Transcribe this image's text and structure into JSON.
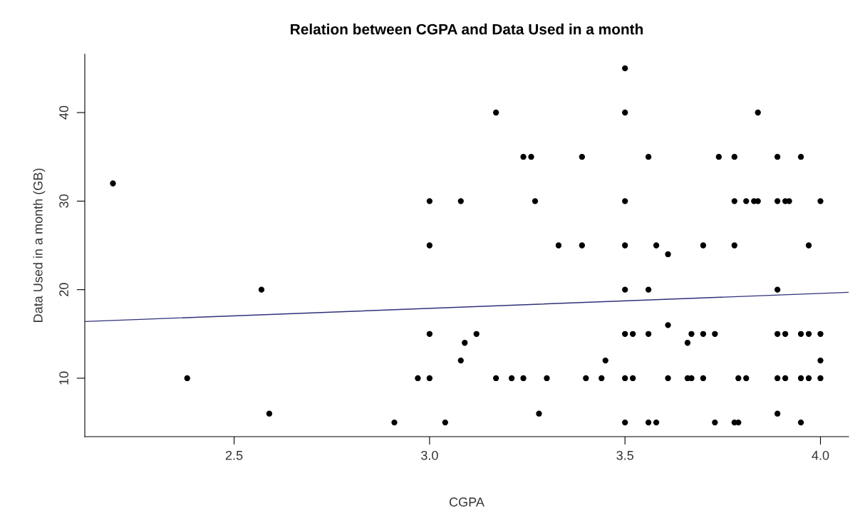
{
  "chart_data": {
    "type": "scatter",
    "title": "Relation between CGPA and Data Used in a month",
    "xlabel": "CGPA",
    "ylabel": "Data Used in a month (GB)",
    "xlim": [
      2.118,
      4.072
    ],
    "ylim": [
      3.4,
      46.6
    ],
    "xticks": [
      {
        "value": 2.5,
        "label": "2.5"
      },
      {
        "value": 3.0,
        "label": "3.0"
      },
      {
        "value": 3.5,
        "label": "3.5"
      },
      {
        "value": 4.0,
        "label": "4.0"
      }
    ],
    "yticks": [
      10,
      20,
      30,
      40
    ],
    "grid": false,
    "legend": false,
    "series": [
      {
        "color": "#000000",
        "marker": "circle",
        "x": [
          2.19,
          2.57,
          2.38,
          2.59,
          2.91,
          2.97,
          3.0,
          3.0,
          3.0,
          3.0,
          3.04,
          3.08,
          3.08,
          3.09,
          3.12,
          3.17,
          3.17,
          3.21,
          3.24,
          3.26,
          3.24,
          3.27,
          3.28,
          3.3,
          3.33,
          3.39,
          3.39,
          3.4,
          3.44,
          3.45,
          3.5,
          3.5,
          3.5,
          3.5,
          3.5,
          3.5,
          3.5,
          3.5,
          3.52,
          3.52,
          3.56,
          3.56,
          3.56,
          3.56,
          3.58,
          3.58,
          3.61,
          3.61,
          3.61,
          3.66,
          3.66,
          3.67,
          3.67,
          3.7,
          3.7,
          3.7,
          3.73,
          3.73,
          3.74,
          3.78,
          3.78,
          3.78,
          3.78,
          3.79,
          3.79,
          3.81,
          3.81,
          3.83,
          3.84,
          3.84,
          3.89,
          3.89,
          3.89,
          3.89,
          3.89,
          3.89,
          3.91,
          3.91,
          3.91,
          3.92,
          3.95,
          3.95,
          3.95,
          3.95,
          3.97,
          3.97,
          3.97,
          4.0,
          4.0,
          4.0,
          4.0
        ],
        "values": [
          32,
          20,
          10,
          6,
          5,
          10,
          30,
          25,
          15,
          10,
          5,
          30,
          12,
          14,
          15,
          40,
          10,
          10,
          35,
          35,
          10,
          30,
          6,
          10,
          25,
          35,
          25,
          10,
          10,
          12,
          45,
          40,
          30,
          25,
          20,
          15,
          10,
          5,
          15,
          10,
          35,
          20,
          15,
          5,
          25,
          5,
          24,
          16,
          10,
          14,
          10,
          15,
          10,
          25,
          15,
          10,
          15,
          5,
          35,
          25,
          35,
          30,
          5,
          10,
          5,
          30,
          10,
          30,
          40,
          30,
          35,
          30,
          20,
          15,
          10,
          6,
          30,
          15,
          10,
          30,
          35,
          15,
          10,
          5,
          25,
          15,
          10,
          30,
          15,
          12,
          10
        ]
      },
      {
        "type": "line",
        "color": "#30307a",
        "x": [
          2.118,
          4.072
        ],
        "values": [
          16.4,
          19.7
        ]
      }
    ]
  }
}
